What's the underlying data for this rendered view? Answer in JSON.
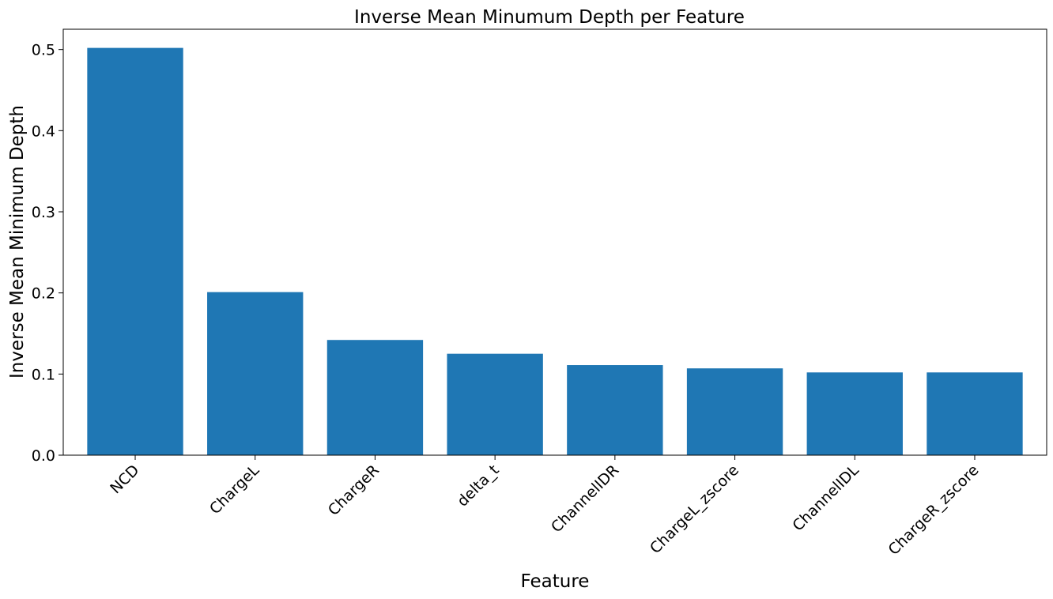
{
  "chart_data": {
    "type": "bar",
    "title": "Inverse Mean Minumum Depth per Feature",
    "xlabel": "Feature",
    "ylabel": "Inverse Mean Minimum Depth",
    "categories": [
      "NCD",
      "ChargeL",
      "ChargeR",
      "delta_t",
      "ChannelIDR",
      "ChargeL_zscore",
      "ChannelIDL",
      "ChargeR_zscore"
    ],
    "values": [
      0.502,
      0.201,
      0.142,
      0.125,
      0.111,
      0.107,
      0.102,
      0.102
    ],
    "ylim": [
      0,
      0.525
    ],
    "yticks": [
      "0.0",
      "0.1",
      "0.2",
      "0.3",
      "0.4",
      "0.5"
    ],
    "bar_color": "#1f77b4",
    "grid": false,
    "legend": "none"
  }
}
